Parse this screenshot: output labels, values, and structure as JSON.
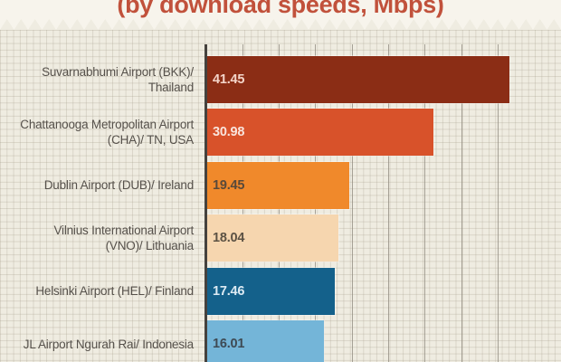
{
  "chart_data": {
    "type": "bar",
    "orientation": "horizontal",
    "title": "(by download speeds, Mbps)",
    "title_color": "#c1513b",
    "xlabel": "",
    "ylabel": "",
    "xlim": [
      0,
      48
    ],
    "x_tick_step": 5,
    "tick_labels_visible": false,
    "grid": "graph-paper background with major vertical gridlines every 5 Mbps",
    "legend": "none",
    "categories": [
      "Suvarnabhumi Airport (BKK)/ Thailand",
      "Chattanooga Metropolitan Airport (CHA)/ TN, USA",
      "Dublin Airport (DUB)/ Ireland",
      "Vilnius International Airport (VNO)/ Lithuania",
      "Helsinki Airport (HEL)/ Finland",
      "JL Airport Ngurah Rai/ Indonesia"
    ],
    "values": [
      41.45,
      30.98,
      19.45,
      18.04,
      17.46,
      16.01
    ],
    "items": [
      {
        "label_lines": [
          "Suvarnabhumi Airport (BKK)/",
          "Thailand"
        ],
        "value": 41.45,
        "bar_color": "#8b2d15",
        "value_color": "#f4d5c9"
      },
      {
        "label_lines": [
          "Chattanooga Metropolitan Airport",
          "(CHA)/ TN, USA"
        ],
        "value": 30.98,
        "bar_color": "#d8522a",
        "value_color": "#f9e4dc"
      },
      {
        "label_lines": [
          "Dublin Airport (DUB)/ Ireland"
        ],
        "value": 19.45,
        "bar_color": "#f0892b",
        "value_color": "#58493a"
      },
      {
        "label_lines": [
          "Vilnius International Airport",
          "(VNO)/ Lithuania"
        ],
        "value": 18.04,
        "bar_color": "#f6d6af",
        "value_color": "#5c5244"
      },
      {
        "label_lines": [
          "Helsinki Airport (HEL)/ Finland"
        ],
        "value": 17.46,
        "bar_color": "#14618b",
        "value_color": "#dceaf3"
      },
      {
        "label_lines": [
          "JL Airport Ngurah Rai/ Indonesia"
        ],
        "value": 16.01,
        "bar_color": "#74b5d8",
        "value_color": "#3e4a54"
      }
    ],
    "label_text_color": "#56514b",
    "axis_line_color": "#45423e",
    "paper_color": "#efece1",
    "header_color": "#f7f4ec"
  }
}
